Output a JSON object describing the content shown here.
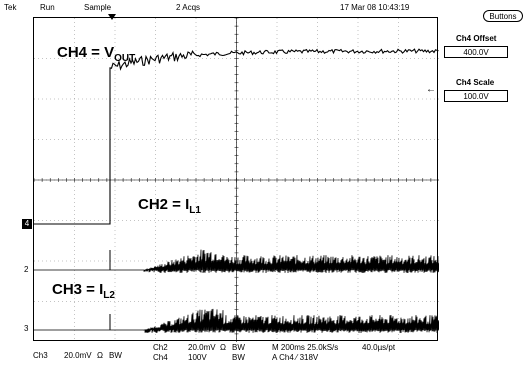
{
  "header": {
    "brand": "Tek",
    "run_state": "Run",
    "acq_mode": "Sample",
    "acq_count": "2 Acqs",
    "timestamp": "17 Mar 08 10:43:19"
  },
  "side_menu": {
    "buttons_label": "Buttons",
    "offset_title": "Ch4 Offset",
    "offset_value": "400.0V",
    "scale_title": "Ch4 Scale",
    "scale_value": "100.0V"
  },
  "traces": {
    "ch4_label": {
      "main": "CH4 = V",
      "sub": "OUT"
    },
    "ch2_label": {
      "main": "CH2 = I",
      "sub": "L1"
    },
    "ch3_label": {
      "main": "CH3 = I",
      "sub": "L2"
    }
  },
  "ground_markers": {
    "ch4": "4",
    "ch2": "2",
    "ch3": "3"
  },
  "readouts": {
    "ch3_name": "Ch3",
    "ch3_scale": "20.0mV",
    "ch3_unit": "Ω",
    "ch3_bw": "BW",
    "ch2_name": "Ch2",
    "ch2_scale": "20.0mV",
    "ch2_unit": "Ω",
    "ch2_bw": "BW",
    "ch4_name": "Ch4",
    "ch4_scale": "100V",
    "ch4_bw": "BW",
    "timebase": "M 200ms 25.0kS/s",
    "sample_interval": "40.0µs/pt",
    "trigger": "A  Ch4  ⁄  318V"
  },
  "colors": {
    "trace": "#000000",
    "grid": "#8a8a8a",
    "background": "#ffffff"
  }
}
